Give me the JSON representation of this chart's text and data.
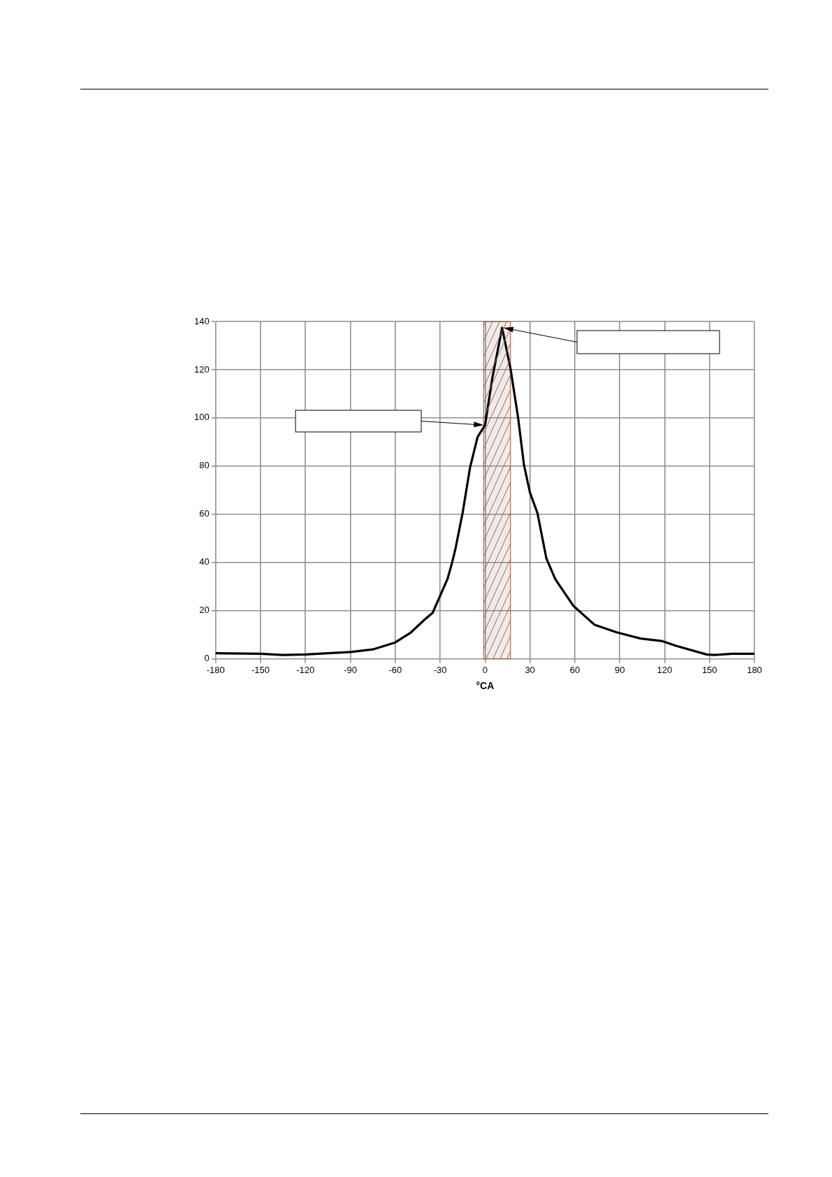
{
  "chart_data": {
    "type": "line",
    "xlabel": "°CA",
    "xlim": [
      -180,
      180
    ],
    "xticks": [
      -180,
      -150,
      -120,
      -90,
      -60,
      -30,
      0,
      30,
      60,
      90,
      120,
      150,
      180
    ],
    "ylim": [
      0,
      140
    ],
    "yticks": [
      0,
      20,
      40,
      60,
      80,
      100,
      120,
      140
    ],
    "grid": true,
    "legend": false,
    "marker": "none",
    "line_style": "solid",
    "bands": [
      {
        "axis": "x",
        "from": -1,
        "to": 17,
        "color": "#a0522d"
      }
    ],
    "series": [
      {
        "color": "#000000",
        "x": [
          -180,
          -150,
          -135,
          -120,
          -90,
          -75,
          -60,
          -50,
          -40,
          -35,
          -30,
          -25,
          -22,
          -20,
          -15,
          -10,
          -5,
          -2,
          0,
          5,
          11.4,
          17,
          22,
          26,
          30,
          35,
          41,
          47,
          59,
          73,
          88,
          104,
          118,
          128,
          148,
          153,
          165,
          180
        ],
        "values": [
          2.3,
          2.1,
          1.6,
          1.8,
          2.8,
          3.9,
          6.8,
          10.7,
          16.5,
          19.1,
          26.2,
          33.3,
          40,
          45,
          60.5,
          79.5,
          92,
          95,
          97,
          117,
          137.4,
          120.5,
          100.5,
          80.5,
          69,
          60.5,
          41.6,
          33,
          22,
          14.2,
          11,
          8.4,
          7.4,
          5.3,
          1.8,
          1.6,
          2.1,
          2.1
        ]
      }
    ]
  }
}
